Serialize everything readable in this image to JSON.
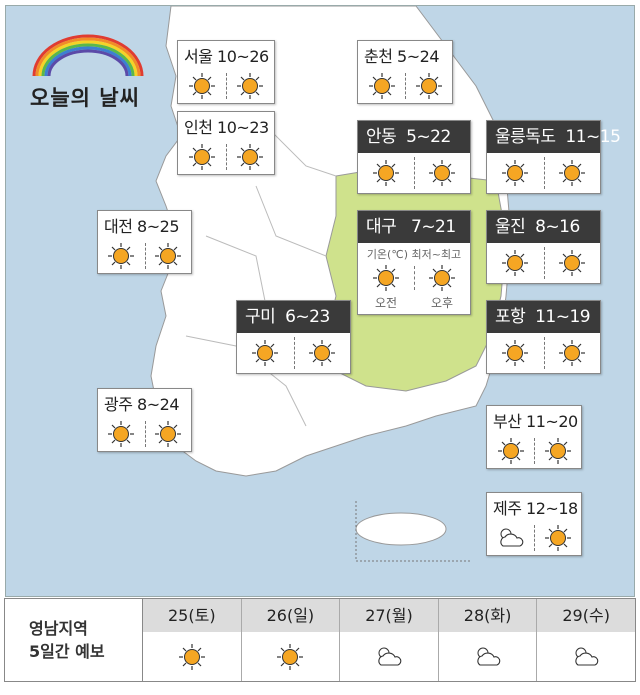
{
  "title": "오늘의 날씨",
  "colors": {
    "sea": "#bfd6e7",
    "land": "#ffffff",
    "yeongnam": "#cfe28c",
    "header_dark": "#3a3a3a",
    "sun": "#f5a623"
  },
  "cities": [
    {
      "id": "seoul",
      "name": "서울",
      "temp": "10~26",
      "am": "sun",
      "pm": "sun",
      "style": "light"
    },
    {
      "id": "incheon",
      "name": "인천",
      "temp": "10~23",
      "am": "sun",
      "pm": "sun",
      "style": "light"
    },
    {
      "id": "chuncheon",
      "name": "춘천",
      "temp": "5~24",
      "am": "sun",
      "pm": "sun",
      "style": "light"
    },
    {
      "id": "andong",
      "name": "안동",
      "temp": "5~22",
      "am": "sun",
      "pm": "sun",
      "style": "dark"
    },
    {
      "id": "ulleung",
      "name": "울릉독도",
      "temp": "11~15",
      "am": "sun",
      "pm": "sun",
      "style": "dark"
    },
    {
      "id": "uljin",
      "name": "울진",
      "temp": "8~16",
      "am": "sun",
      "pm": "sun",
      "style": "dark"
    },
    {
      "id": "gumi",
      "name": "구미",
      "temp": "6~23",
      "am": "sun",
      "pm": "sun",
      "style": "dark"
    },
    {
      "id": "pohang",
      "name": "포항",
      "temp": "11~19",
      "am": "sun",
      "pm": "sun",
      "style": "dark"
    },
    {
      "id": "daejeon",
      "name": "대전",
      "temp": "8~25",
      "am": "sun",
      "pm": "sun",
      "style": "light"
    },
    {
      "id": "gwangju",
      "name": "광주",
      "temp": "8~24",
      "am": "sun",
      "pm": "sun",
      "style": "light"
    },
    {
      "id": "busan",
      "name": "부산",
      "temp": "11~20",
      "am": "sun",
      "pm": "sun",
      "style": "light"
    },
    {
      "id": "jeju",
      "name": "제주",
      "temp": "12~18",
      "am": "cloud",
      "pm": "sun",
      "style": "light"
    }
  ],
  "daegu": {
    "name": "대구",
    "temp": "7~21",
    "legend": "기온(℃) 최저~최고",
    "am": "sun",
    "pm": "sun",
    "am_label": "오전",
    "pm_label": "오후"
  },
  "forecast": {
    "label_line1": "영남지역",
    "label_line2": "5일간 예보",
    "days": [
      {
        "day": "25(토)",
        "icon": "sun"
      },
      {
        "day": "26(일)",
        "icon": "sun"
      },
      {
        "day": "27(월)",
        "icon": "cloud"
      },
      {
        "day": "28(화)",
        "icon": "cloud"
      },
      {
        "day": "29(수)",
        "icon": "cloud"
      }
    ]
  }
}
